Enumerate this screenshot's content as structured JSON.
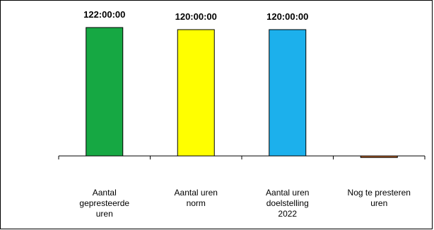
{
  "chart_data": {
    "type": "bar",
    "categories": [
      [
        "Aantal",
        "gepresteerde",
        "uren"
      ],
      [
        "Aantal uren",
        "norm"
      ],
      [
        "Aantal uren",
        "doelstelling",
        "2022"
      ],
      [
        "Nog te presteren",
        "uren"
      ]
    ],
    "values": [
      122,
      120,
      120,
      -1.5
    ],
    "value_labels": [
      "122:00:00",
      "120:00:00",
      "120:00:00",
      ""
    ],
    "bar_colors": [
      "#16a843",
      "#ffff00",
      "#1cb0ec",
      "#c0662a"
    ],
    "ylim": [
      -30,
      135
    ],
    "grid": false,
    "legend": "none"
  }
}
